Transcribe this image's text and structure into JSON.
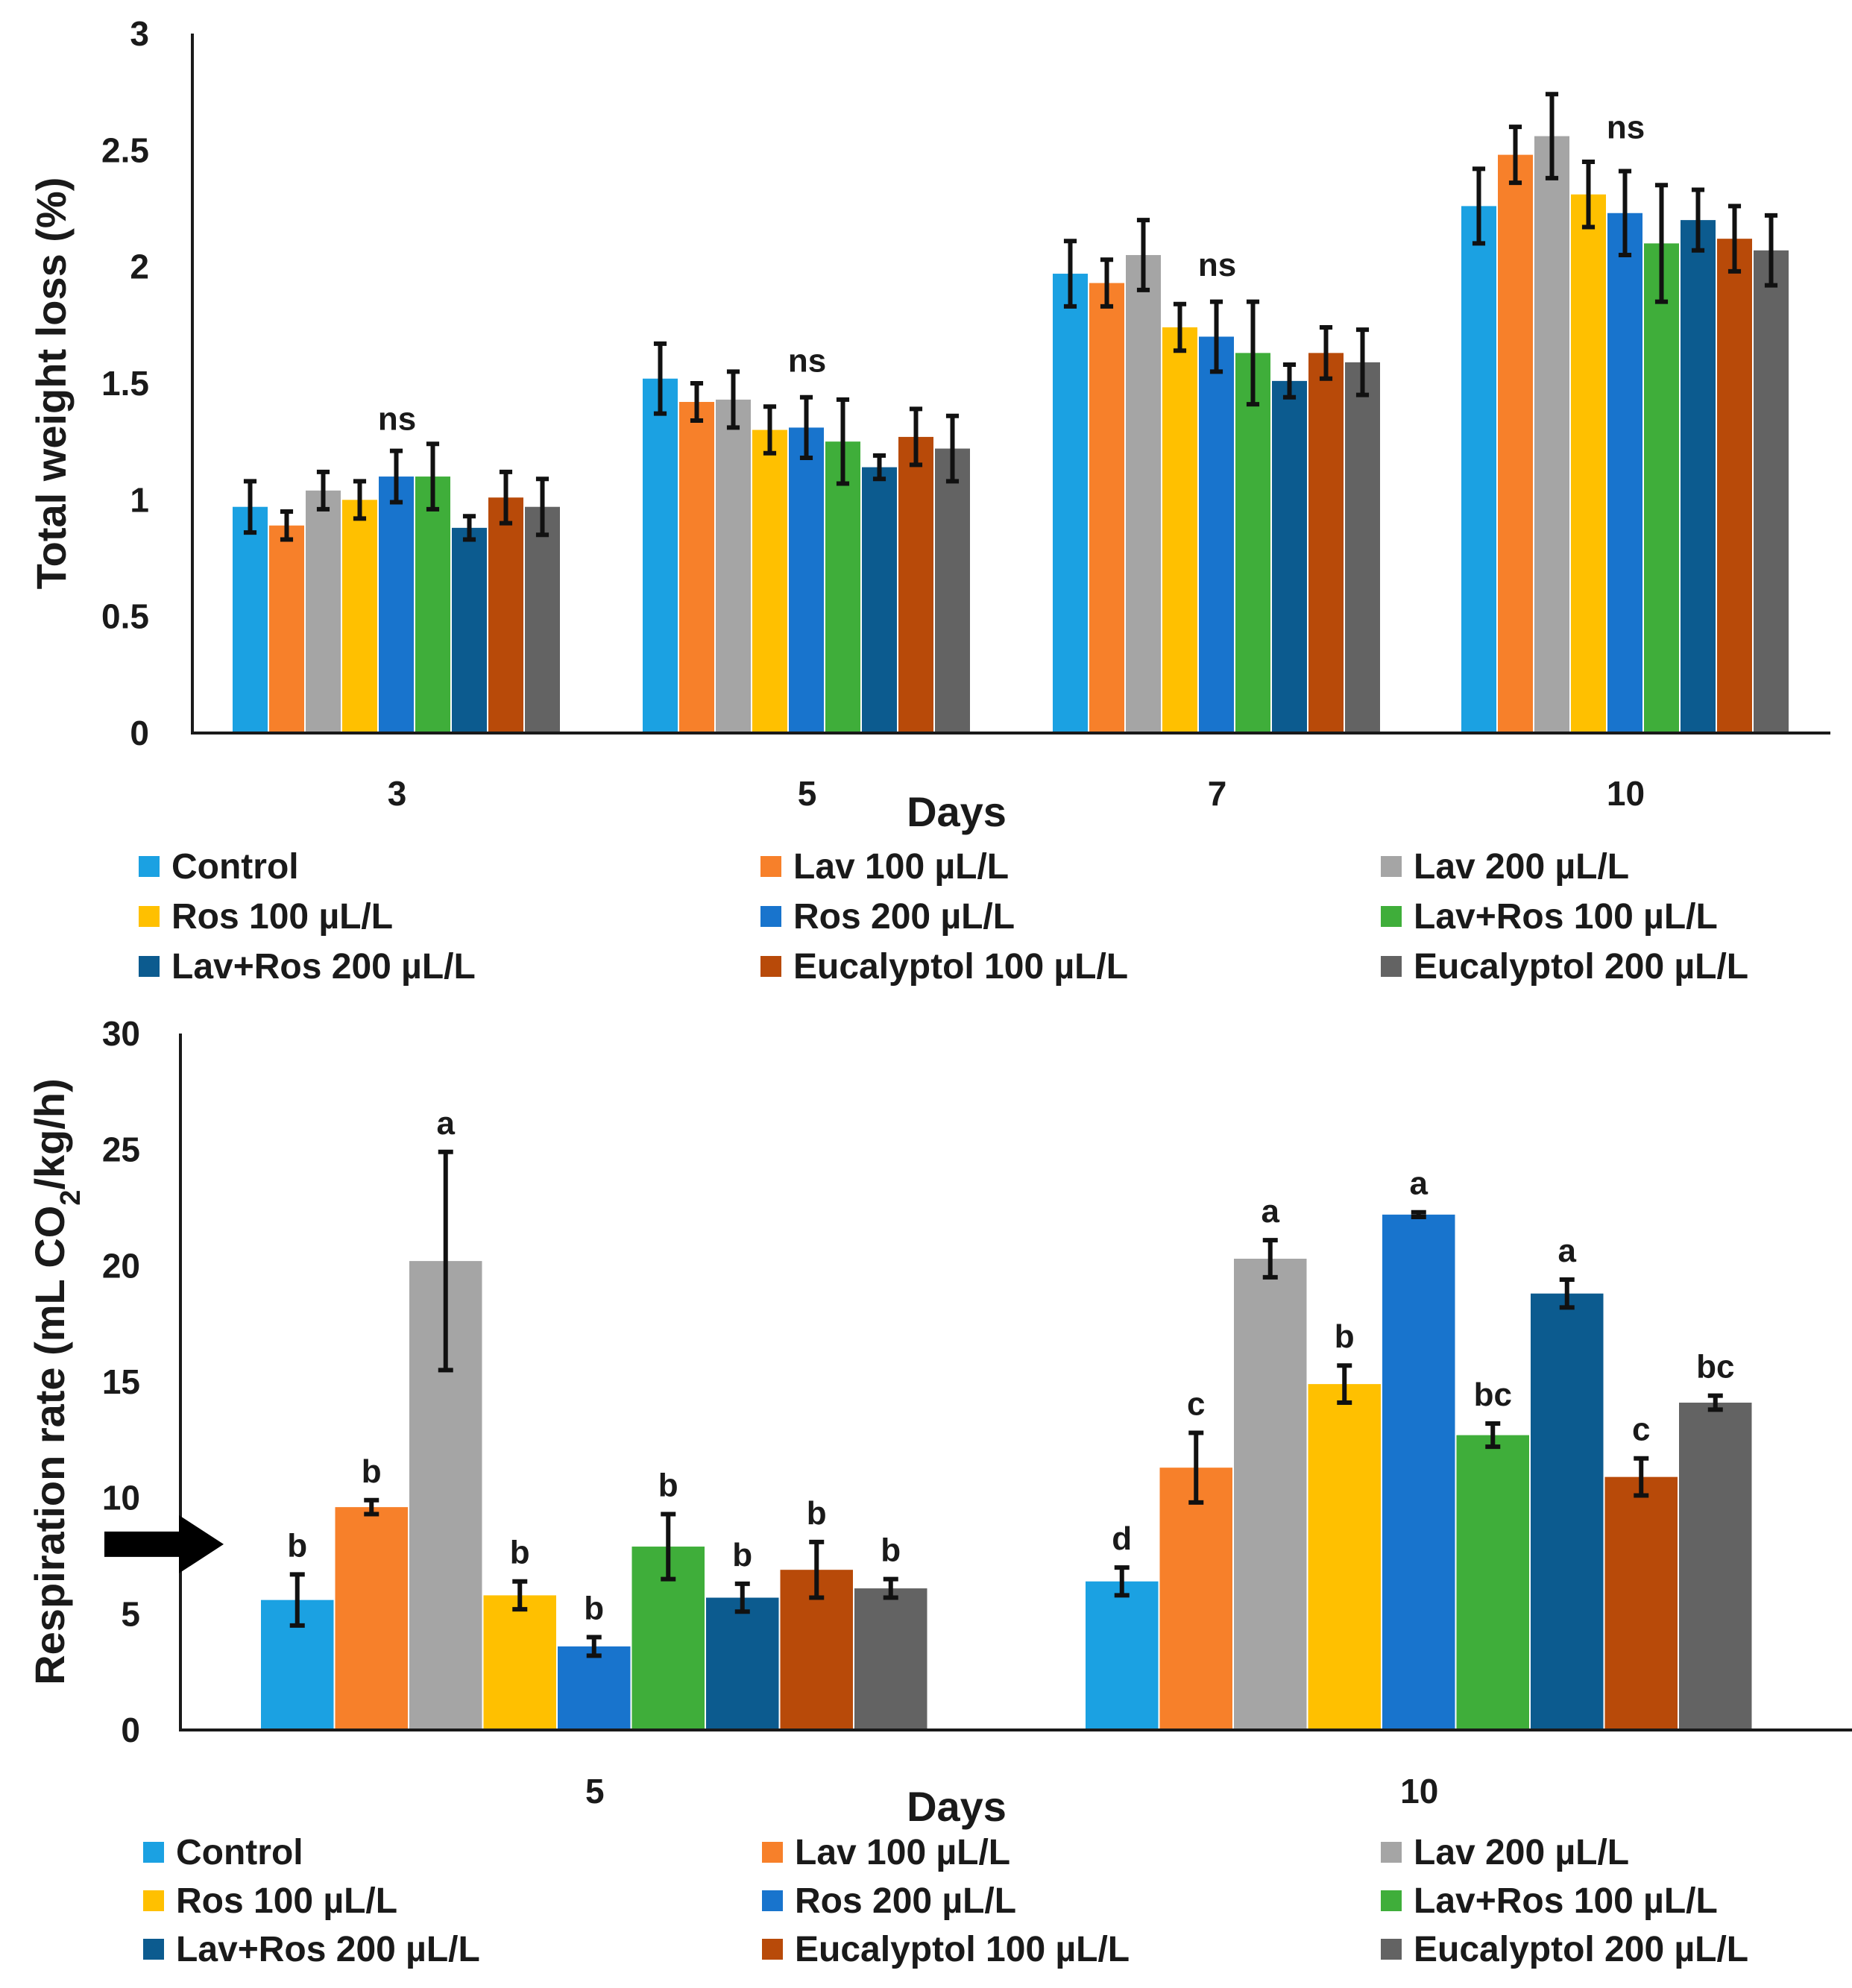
{
  "figure": {
    "description_free": true
  },
  "series_colors": [
    "#1ba1e2",
    "#f7802a",
    "#a5a5a5",
    "#ffc000",
    "#1874cd",
    "#3fae3a",
    "#0c5b8f",
    "#b84a09",
    "#636363"
  ],
  "chart_data": [
    {
      "type": "bar",
      "title": "",
      "xlabel": "Days",
      "ylabel": "Total weight loss (%)",
      "ylim": [
        0,
        3
      ],
      "yticks": [
        "0",
        "0.5",
        "1",
        "1.5",
        "2",
        "2.5",
        "3"
      ],
      "categories": [
        "3",
        "5",
        "7",
        "10"
      ],
      "series": [
        {
          "name": "Control",
          "values": [
            0.97,
            1.52,
            1.97,
            2.26
          ],
          "errors": [
            0.11,
            0.15,
            0.14,
            0.16
          ]
        },
        {
          "name": "Lav 100 µL/L",
          "values": [
            0.89,
            1.42,
            1.93,
            2.48
          ],
          "errors": [
            0.06,
            0.08,
            0.1,
            0.12
          ]
        },
        {
          "name": "Lav 200 µL/L",
          "values": [
            1.04,
            1.43,
            2.05,
            2.56
          ],
          "errors": [
            0.08,
            0.12,
            0.15,
            0.18
          ]
        },
        {
          "name": "Ros 100 µL/L",
          "values": [
            1.0,
            1.3,
            1.74,
            2.31
          ],
          "errors": [
            0.08,
            0.1,
            0.1,
            0.14
          ]
        },
        {
          "name": "Ros 200 µL/L",
          "values": [
            1.1,
            1.31,
            1.7,
            2.23
          ],
          "errors": [
            0.11,
            0.13,
            0.15,
            0.18
          ]
        },
        {
          "name": "Lav+Ros 100 µL/L",
          "values": [
            1.1,
            1.25,
            1.63,
            2.1
          ],
          "errors": [
            0.14,
            0.18,
            0.22,
            0.25
          ]
        },
        {
          "name": "Lav+Ros 200 µL/L",
          "values": [
            0.88,
            1.14,
            1.51,
            2.2
          ],
          "errors": [
            0.05,
            0.05,
            0.07,
            0.13
          ]
        },
        {
          "name": "Eucalyptol 100 µL/L",
          "values": [
            1.01,
            1.27,
            1.63,
            2.12
          ],
          "errors": [
            0.11,
            0.12,
            0.11,
            0.14
          ]
        },
        {
          "name": "Eucalyptol 200 µL/L",
          "values": [
            0.97,
            1.22,
            1.59,
            2.07
          ],
          "errors": [
            0.12,
            0.14,
            0.14,
            0.15
          ]
        }
      ],
      "annotations": [
        {
          "category": "3",
          "text": "ns",
          "y": 1.3
        },
        {
          "category": "5",
          "text": "ns",
          "y": 1.55
        },
        {
          "category": "7",
          "text": "ns",
          "y": 1.96
        },
        {
          "category": "10",
          "text": "ns",
          "y": 2.55
        }
      ],
      "legend_position": "bottom",
      "grid": false
    },
    {
      "type": "bar",
      "title": "",
      "xlabel": "Days",
      "ylabel": "Respiration rate (mL CO2/kg/h)",
      "ylabel_parts": {
        "before": "Respiration rate (mL CO",
        "sub": "2",
        "after": "/kg/h)"
      },
      "ylim": [
        0,
        30
      ],
      "yticks": [
        "0",
        "5",
        "10",
        "15",
        "20",
        "25",
        "30"
      ],
      "categories": [
        "5",
        "10"
      ],
      "reference_arrow_value": 8,
      "series": [
        {
          "name": "Control",
          "values": [
            5.6,
            6.4
          ],
          "errors": [
            1.1,
            0.6
          ],
          "labels": [
            "b",
            "d"
          ]
        },
        {
          "name": "Lav 100 µL/L",
          "values": [
            9.6,
            11.3
          ],
          "errors": [
            0.3,
            1.5
          ],
          "labels": [
            "b",
            "c"
          ]
        },
        {
          "name": "Lav 200 µL/L",
          "values": [
            20.2,
            20.3
          ],
          "errors": [
            4.7,
            0.8
          ],
          "labels": [
            "a",
            "a"
          ]
        },
        {
          "name": "Ros 100 µL/L",
          "values": [
            5.8,
            14.9
          ],
          "errors": [
            0.6,
            0.8
          ],
          "labels": [
            "b",
            "b"
          ]
        },
        {
          "name": "Ros 200 µL/L",
          "values": [
            3.6,
            22.2
          ],
          "errors": [
            0.4,
            0.1
          ],
          "labels": [
            "b",
            "a"
          ]
        },
        {
          "name": "Lav+Ros 100 µL/L",
          "values": [
            7.9,
            12.7
          ],
          "errors": [
            1.4,
            0.5
          ],
          "labels": [
            "b",
            "bc"
          ]
        },
        {
          "name": "Lav+Ros 200 µL/L",
          "values": [
            5.7,
            18.8
          ],
          "errors": [
            0.6,
            0.6
          ],
          "labels": [
            "b",
            "a"
          ]
        },
        {
          "name": "Eucalyptol 100 µL/L",
          "values": [
            6.9,
            10.9
          ],
          "errors": [
            1.2,
            0.8
          ],
          "labels": [
            "b",
            "c"
          ]
        },
        {
          "name": "Eucalyptol 200 µL/L",
          "values": [
            6.1,
            14.1
          ],
          "errors": [
            0.4,
            0.3
          ],
          "labels": [
            "b",
            "bc"
          ]
        }
      ],
      "legend_position": "bottom",
      "grid": false
    }
  ]
}
